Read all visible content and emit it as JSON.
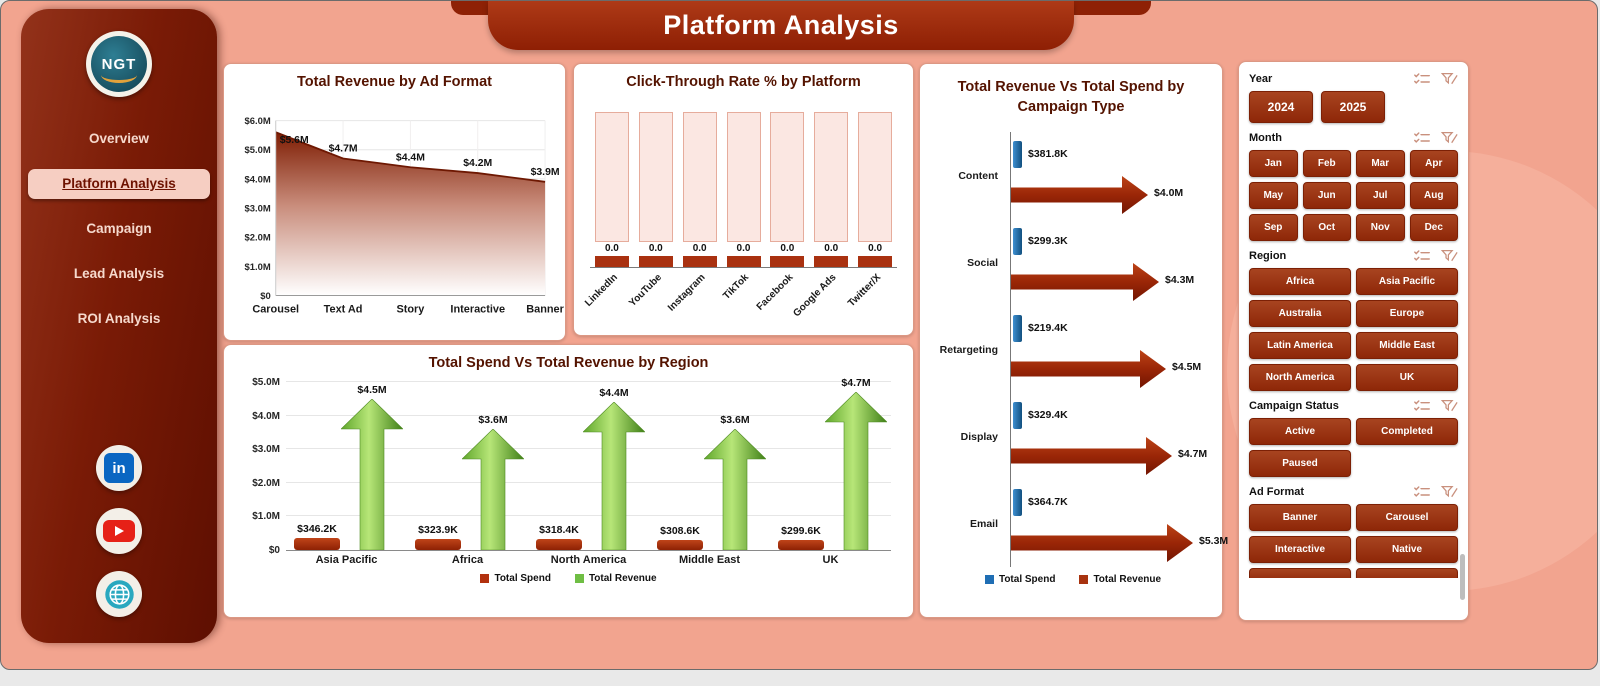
{
  "app": {
    "title": "Platform Analysis"
  },
  "sidebar": {
    "logo": {
      "text": "NGT"
    },
    "items": [
      {
        "label": "Overview",
        "active": false
      },
      {
        "label": "Platform Analysis",
        "active": true
      },
      {
        "label": "Campaign",
        "active": false
      },
      {
        "label": "Lead Analysis",
        "active": false
      },
      {
        "label": "ROI Analysis",
        "active": false
      }
    ],
    "social": [
      "linkedin",
      "youtube",
      "web"
    ]
  },
  "chart_data": [
    {
      "id": "revenue_by_ad_format",
      "type": "area",
      "title": "Total Revenue by Ad Format",
      "categories": [
        "Carousel",
        "Text Ad",
        "Story",
        "Interactive",
        "Banner"
      ],
      "values": [
        5.6,
        4.7,
        4.4,
        4.2,
        3.9
      ],
      "labels": [
        "$5.6M",
        "$4.7M",
        "$4.4M",
        "$4.2M",
        "$3.9M"
      ],
      "y_ticks": [
        "$0",
        "$1.0M",
        "$2.0M",
        "$3.0M",
        "$4.0M",
        "$5.0M",
        "$6.0M"
      ],
      "ylim": [
        0,
        6
      ],
      "xlabel": "",
      "ylabel": "",
      "grid": true
    },
    {
      "id": "ctr_by_platform",
      "type": "bar",
      "title": "Click-Through Rate % by Platform",
      "categories": [
        "LinkedIn",
        "YouTube",
        "Instagram",
        "TikTok",
        "Facebook",
        "Google Ads",
        "Twitter/X"
      ],
      "values": [
        0.0,
        0.0,
        0.0,
        0.0,
        0.0,
        0.0,
        0.0
      ],
      "labels": [
        "0.0",
        "0.0",
        "0.0",
        "0.0",
        "0.0",
        "0.0",
        "0.0"
      ],
      "bar_color": "#FBE7E2",
      "base_color": "#A93110"
    },
    {
      "id": "spend_vs_revenue_by_region",
      "type": "bar",
      "title": "Total Spend Vs Total Revenue by Region",
      "categories": [
        "Asia Pacific",
        "Africa",
        "North America",
        "Middle East",
        "UK"
      ],
      "series": [
        {
          "name": "Total Spend",
          "values_k": [
            346.2,
            323.9,
            318.4,
            308.6,
            299.6
          ],
          "labels": [
            "$346.2K",
            "$323.9K",
            "$318.4K",
            "$308.6K",
            "$299.6K"
          ],
          "color": "#B2310E"
        },
        {
          "name": "Total Revenue",
          "values_m": [
            4.5,
            3.6,
            4.4,
            3.6,
            4.7
          ],
          "labels": [
            "$4.5M",
            "$3.6M",
            "$4.4M",
            "$3.6M",
            "$4.7M"
          ],
          "color": "#6FBE44"
        }
      ],
      "y_ticks": [
        "$0",
        "$1.0M",
        "$2.0M",
        "$3.0M",
        "$4.0M",
        "$5.0M"
      ],
      "ylim": [
        0,
        5
      ],
      "legend_position": "bottom"
    },
    {
      "id": "revenue_vs_spend_by_campaign",
      "type": "bar",
      "title": "Total Revenue Vs Total Spend by Campaign Type",
      "orientation": "horizontal",
      "categories": [
        "Content",
        "Social",
        "Retargeting",
        "Display",
        "Email"
      ],
      "series": [
        {
          "name": "Total Spend",
          "values_k": [
            381.8,
            299.3,
            219.4,
            329.4,
            364.7
          ],
          "labels": [
            "$381.8K",
            "$299.3K",
            "$219.4K",
            "$329.4K",
            "$364.7K"
          ],
          "color": "#1F6EB4"
        },
        {
          "name": "Total Revenue",
          "values_m": [
            4.0,
            4.3,
            4.5,
            4.7,
            5.3
          ],
          "labels": [
            "$4.0M",
            "$4.3M",
            "$4.5M",
            "$4.7M",
            "$5.3M"
          ],
          "color": "#A8330F"
        }
      ],
      "legend_position": "bottom"
    }
  ],
  "filters": {
    "sections": [
      {
        "label": "Year",
        "options": [
          "2024",
          "2025"
        ],
        "cols": 2,
        "large": true
      },
      {
        "label": "Month",
        "options": [
          "Jan",
          "Feb",
          "Mar",
          "Apr",
          "May",
          "Jun",
          "Jul",
          "Aug",
          "Sep",
          "Oct",
          "Nov",
          "Dec"
        ],
        "cols": 4
      },
      {
        "label": "Region",
        "options": [
          "Africa",
          "Asia Pacific",
          "Australia",
          "Europe",
          "Latin America",
          "Middle East",
          "North America",
          "UK"
        ],
        "cols": 2
      },
      {
        "label": "Campaign Status",
        "options": [
          "Active",
          "Completed",
          "Paused"
        ],
        "cols": 2
      },
      {
        "label": "Ad Format",
        "options": [
          "Banner",
          "Carousel",
          "Interactive",
          "Native"
        ],
        "cols": 2,
        "cropped": true
      }
    ]
  },
  "colors": {
    "background": "#F2A48F",
    "sidebar": "#7A1B06",
    "banner": "#9A280C",
    "card_border": "#DC9884",
    "button": "#9E3414",
    "title_text": "#541300"
  }
}
